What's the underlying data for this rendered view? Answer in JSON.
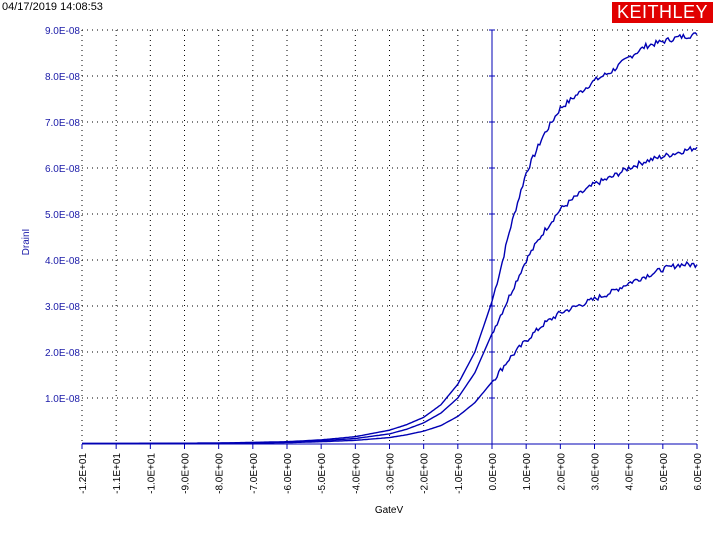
{
  "header": {
    "timestamp": "04/17/2019 14:08:53",
    "logo_text": "KEITHLEY"
  },
  "colors": {
    "series": "#0000b4",
    "y_tick_text": "#1a1aa8",
    "logo_bg": "#e10000",
    "grid": "#000000"
  },
  "chart_data": {
    "type": "line",
    "xlabel": "GateV",
    "ylabel": "DrainI",
    "xlim": [
      -12,
      6
    ],
    "ylim": [
      0,
      9e-08
    ],
    "grid": true,
    "x_ticks": [
      -12,
      -11,
      -10,
      -9,
      -8,
      -7,
      -6,
      -5,
      -4,
      -3,
      -2,
      -1,
      0,
      1,
      2,
      3,
      4,
      5,
      6
    ],
    "x_tick_labels": [
      "-1.2E+01",
      "-1.1E+01",
      "-1.0E+01",
      "-9.0E+00",
      "-8.0E+00",
      "-7.0E+00",
      "-6.0E+00",
      "-5.0E+00",
      "-4.0E+00",
      "-3.0E+00",
      "-2.0E+00",
      "-1.0E+00",
      "0.0E+00",
      "1.0E+00",
      "2.0E+00",
      "3.0E+00",
      "4.0E+00",
      "5.0E+00",
      "6.0E+00"
    ],
    "y_ticks": [
      1e-08,
      2e-08,
      3e-08,
      4e-08,
      5e-08,
      6e-08,
      7e-08,
      8e-08,
      9e-08
    ],
    "y_tick_labels": [
      "1.0E-08",
      "2.0E-08",
      "3.0E-08",
      "4.0E-08",
      "5.0E-08",
      "6.0E-08",
      "7.0E-08",
      "8.0E-08",
      "9.0E-08"
    ],
    "series": [
      {
        "x": [
          -12,
          -10,
          -8,
          -6,
          -5,
          -4,
          -3,
          -2.5,
          -2,
          -1.5,
          -1,
          -0.5,
          0,
          0.25,
          0.5,
          1,
          1.5,
          2,
          2.5,
          3,
          3.5,
          4,
          4.5,
          5,
          5.5,
          6
        ],
        "values": [
          1e-10,
          1.5e-10,
          2e-10,
          5e-10,
          9e-10,
          1.6e-09,
          3e-09,
          4.2e-09,
          5.8e-09,
          8.5e-09,
          1.3e-08,
          2e-08,
          3.1e-08,
          3.8e-08,
          4.6e-08,
          5.9e-08,
          6.7e-08,
          7.3e-08,
          7.6e-08,
          7.9e-08,
          8.1e-08,
          8.4e-08,
          8.65e-08,
          8.75e-08,
          8.85e-08,
          8.9e-08
        ]
      },
      {
        "x": [
          -12,
          -10,
          -8,
          -6,
          -5,
          -4,
          -3,
          -2.5,
          -2,
          -1.5,
          -1,
          -0.5,
          0,
          0.5,
          1,
          1.5,
          2,
          2.5,
          3,
          3.5,
          4,
          4.5,
          5,
          5.5,
          6
        ],
        "values": [
          1e-10,
          1.5e-10,
          2e-10,
          4e-10,
          7e-10,
          1.2e-09,
          2.2e-09,
          3.2e-09,
          4.6e-09,
          6.7e-09,
          1e-08,
          1.55e-08,
          2.4e-08,
          3.2e-08,
          4e-08,
          4.6e-08,
          5.1e-08,
          5.4e-08,
          5.65e-08,
          5.8e-08,
          6e-08,
          6.15e-08,
          6.25e-08,
          6.35e-08,
          6.45e-08
        ]
      },
      {
        "x": [
          -12,
          -10,
          -8,
          -6,
          -5,
          -4,
          -3,
          -2.5,
          -2,
          -1.5,
          -1,
          -0.5,
          0,
          0.5,
          1,
          1.5,
          2,
          2.5,
          3,
          3.5,
          4,
          4.5,
          5,
          5.5,
          6
        ],
        "values": [
          5e-11,
          1e-10,
          1.5e-10,
          3e-10,
          5e-10,
          8e-10,
          1.4e-09,
          2e-09,
          2.8e-09,
          4e-09,
          6e-09,
          9e-09,
          1.35e-08,
          1.85e-08,
          2.25e-08,
          2.6e-08,
          2.85e-08,
          3e-08,
          3.15e-08,
          3.3e-08,
          3.5e-08,
          3.65e-08,
          3.8e-08,
          3.9e-08,
          3.9e-08
        ]
      }
    ]
  }
}
